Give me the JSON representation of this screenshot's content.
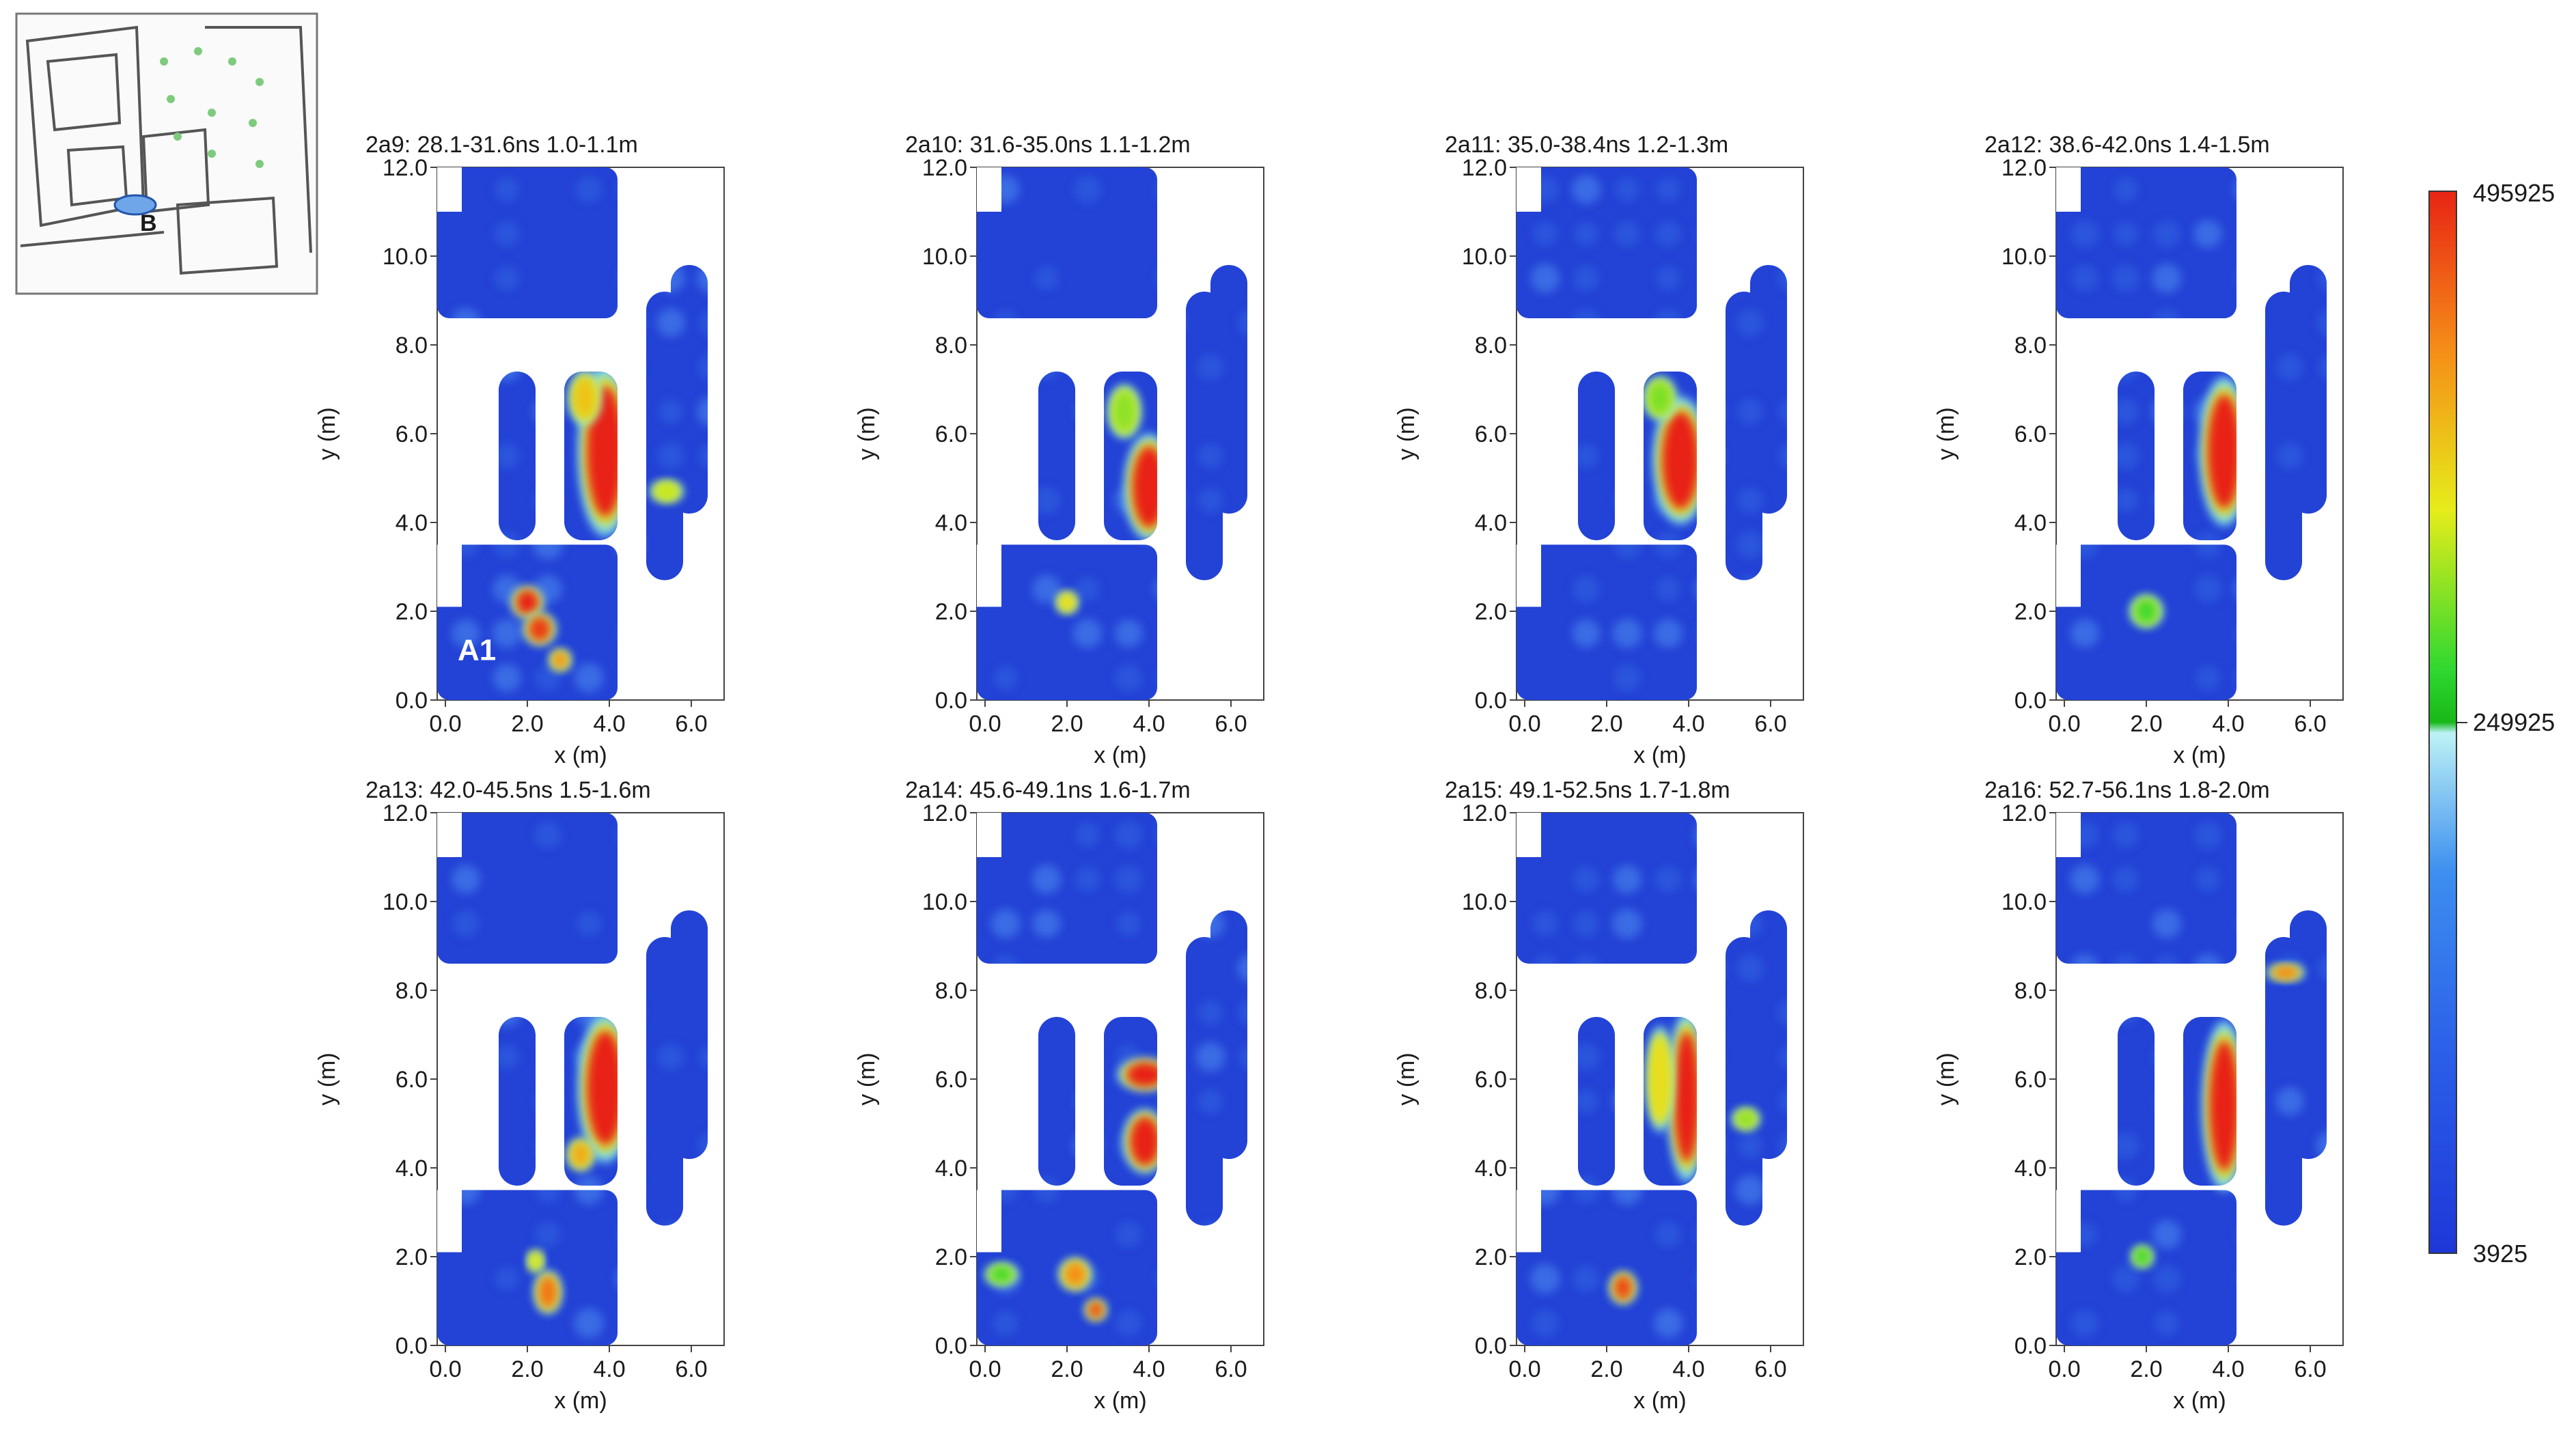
{
  "chart_data": {
    "type": "heatmap",
    "description_units": {
      "x": "x (m)",
      "y": "y (m)"
    },
    "xlabel": "x (m)",
    "ylabel": "y (m)",
    "xlim": [
      -0.2,
      6.8
    ],
    "ylim": [
      0,
      12
    ],
    "xticks": [
      "0.0",
      "2.0",
      "4.0",
      "6.0"
    ],
    "yticks": [
      "0.0",
      "2.0",
      "4.0",
      "6.0",
      "8.0",
      "10.0",
      "12.0"
    ],
    "colorbar": {
      "max_label": "495925",
      "mid_label": "249925",
      "min_label": "3925",
      "max": 495925,
      "mid": 249925,
      "min": 3925
    },
    "inset_map": {
      "label": "B"
    },
    "annotation": "A1",
    "panels": [
      {
        "title": "2a9:  28.1-31.6ns   1.0-1.1m",
        "hotspots": [
          {
            "x": 3.9,
            "y": 5.6,
            "sx": 0.5,
            "sy": 1.6,
            "value": 495925
          },
          {
            "x": 3.4,
            "y": 6.8,
            "sx": 0.3,
            "sy": 0.5,
            "value": 380000
          },
          {
            "x": 2.0,
            "y": 2.2,
            "sx": 0.3,
            "sy": 0.3,
            "value": 495925
          },
          {
            "x": 2.3,
            "y": 1.6,
            "sx": 0.3,
            "sy": 0.3,
            "value": 480000
          },
          {
            "x": 2.8,
            "y": 0.9,
            "sx": 0.2,
            "sy": 0.2,
            "value": 420000
          },
          {
            "x": 5.4,
            "y": 4.7,
            "sx": 0.3,
            "sy": 0.2,
            "value": 330000
          }
        ]
      },
      {
        "title": "2a10:  31.6-35.0ns   1.1-1.2m",
        "hotspots": [
          {
            "x": 4.0,
            "y": 4.8,
            "sx": 0.45,
            "sy": 1.0,
            "value": 495925
          },
          {
            "x": 3.4,
            "y": 6.5,
            "sx": 0.3,
            "sy": 0.5,
            "value": 300000
          },
          {
            "x": 2.0,
            "y": 2.2,
            "sx": 0.2,
            "sy": 0.2,
            "value": 360000
          }
        ]
      },
      {
        "title": "2a11:  35.0-38.4ns   1.2-1.3m",
        "hotspots": [
          {
            "x": 3.8,
            "y": 5.4,
            "sx": 0.5,
            "sy": 1.2,
            "value": 495925
          },
          {
            "x": 3.3,
            "y": 6.8,
            "sx": 0.3,
            "sy": 0.4,
            "value": 290000
          }
        ]
      },
      {
        "title": "2a12:  38.6-42.0ns   1.4-1.5m",
        "hotspots": [
          {
            "x": 3.9,
            "y": 5.6,
            "sx": 0.45,
            "sy": 1.4,
            "value": 495925
          },
          {
            "x": 2.0,
            "y": 2.0,
            "sx": 0.3,
            "sy": 0.3,
            "value": 260000
          }
        ]
      },
      {
        "title": "2a13:  42.0-45.5ns   1.5-1.6m",
        "hotspots": [
          {
            "x": 3.9,
            "y": 5.8,
            "sx": 0.5,
            "sy": 1.4,
            "value": 495925
          },
          {
            "x": 3.3,
            "y": 4.3,
            "sx": 0.25,
            "sy": 0.3,
            "value": 400000
          },
          {
            "x": 2.5,
            "y": 1.2,
            "sx": 0.25,
            "sy": 0.4,
            "value": 440000
          },
          {
            "x": 2.2,
            "y": 1.9,
            "sx": 0.15,
            "sy": 0.2,
            "value": 340000
          }
        ]
      },
      {
        "title": "2a14:  45.6-49.1ns   1.6-1.7m",
        "hotspots": [
          {
            "x": 3.9,
            "y": 6.1,
            "sx": 0.5,
            "sy": 0.3,
            "value": 495925
          },
          {
            "x": 3.9,
            "y": 4.6,
            "sx": 0.4,
            "sy": 0.6,
            "value": 495925
          },
          {
            "x": 2.2,
            "y": 1.6,
            "sx": 0.3,
            "sy": 0.3,
            "value": 420000
          },
          {
            "x": 2.7,
            "y": 0.8,
            "sx": 0.2,
            "sy": 0.2,
            "value": 470000
          },
          {
            "x": 0.4,
            "y": 1.6,
            "sx": 0.3,
            "sy": 0.2,
            "value": 260000
          }
        ]
      },
      {
        "title": "2a15:  49.1-52.5ns   1.7-1.8m",
        "hotspots": [
          {
            "x": 3.95,
            "y": 5.6,
            "sx": 0.35,
            "sy": 1.6,
            "value": 495925
          },
          {
            "x": 3.3,
            "y": 6.0,
            "sx": 0.25,
            "sy": 1.0,
            "value": 360000
          },
          {
            "x": 2.4,
            "y": 1.3,
            "sx": 0.25,
            "sy": 0.3,
            "value": 470000
          },
          {
            "x": 5.4,
            "y": 5.1,
            "sx": 0.25,
            "sy": 0.2,
            "value": 300000
          }
        ]
      },
      {
        "title": "2a16:  52.7-56.1ns   1.8-2.0m",
        "hotspots": [
          {
            "x": 3.9,
            "y": 5.4,
            "sx": 0.4,
            "sy": 1.6,
            "value": 495925
          },
          {
            "x": 5.4,
            "y": 8.4,
            "sx": 0.35,
            "sy": 0.15,
            "value": 430000
          },
          {
            "x": 1.9,
            "y": 2.0,
            "sx": 0.2,
            "sy": 0.2,
            "value": 250000
          }
        ]
      }
    ]
  }
}
